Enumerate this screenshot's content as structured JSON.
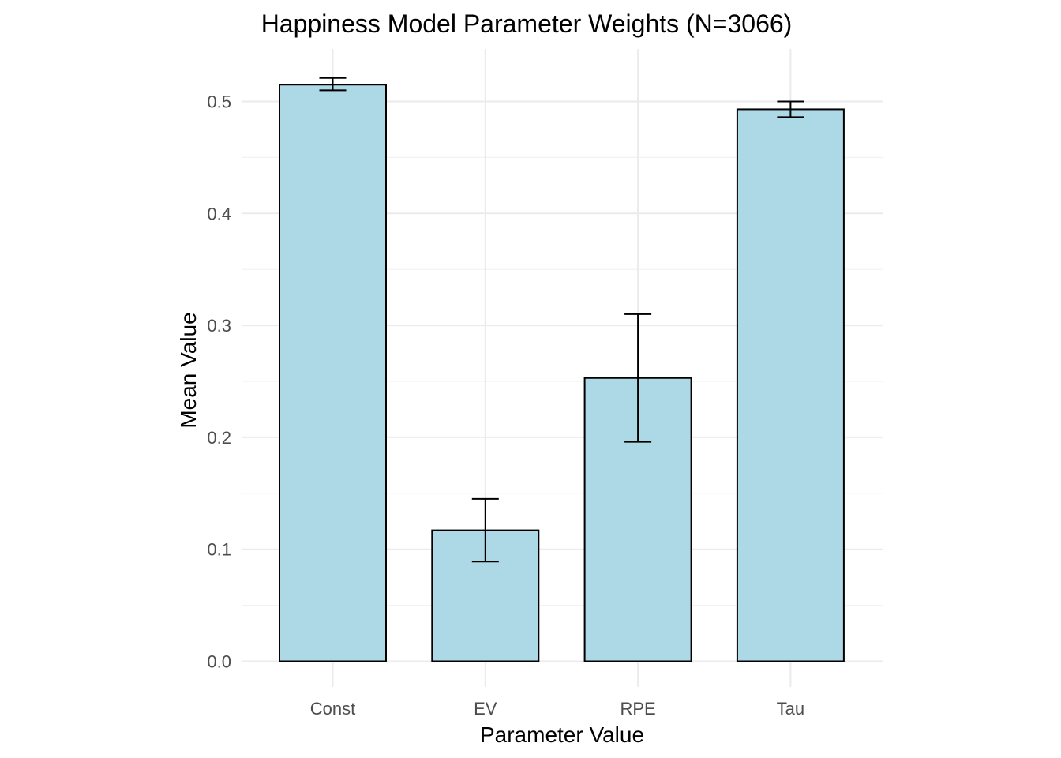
{
  "chart_data": {
    "type": "bar",
    "title": "Happiness Model Parameter Weights (N=3066)",
    "xlabel": "Parameter Value",
    "ylabel": "Mean Value",
    "categories": [
      "Const",
      "EV",
      "RPE",
      "Tau"
    ],
    "values": [
      0.515,
      0.117,
      0.253,
      0.493
    ],
    "error_lower": [
      0.51,
      0.089,
      0.196,
      0.486
    ],
    "error_upper": [
      0.521,
      0.145,
      0.31,
      0.5
    ],
    "ylim": [
      0.0,
      0.54
    ],
    "yticks": [
      0.0,
      0.1,
      0.2,
      0.3,
      0.4,
      0.5
    ],
    "ytick_labels": [
      "0.0",
      "0.1",
      "0.2",
      "0.3",
      "0.4",
      "0.5"
    ],
    "bar_fill": "#add8e6",
    "bar_outline": "#000000",
    "grid": true,
    "legend": "none"
  }
}
